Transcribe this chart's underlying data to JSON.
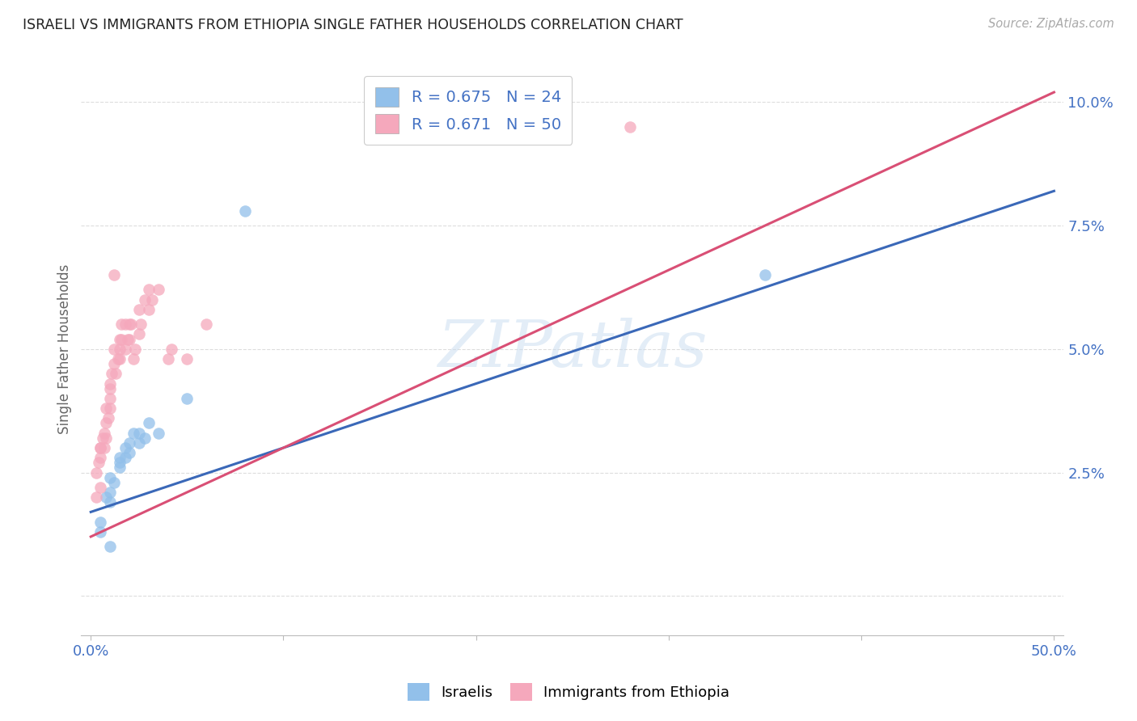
{
  "title": "ISRAELI VS IMMIGRANTS FROM ETHIOPIA SINGLE FATHER HOUSEHOLDS CORRELATION CHART",
  "source": "Source: ZipAtlas.com",
  "ylabel": "Single Father Households",
  "watermark": "ZIPatlas",
  "xlim": [
    -0.005,
    0.505
  ],
  "ylim": [
    -0.008,
    0.108
  ],
  "ytick_vals": [
    0.0,
    0.025,
    0.05,
    0.075,
    0.1
  ],
  "ytick_labels": [
    "",
    "2.5%",
    "5.0%",
    "7.5%",
    "10.0%"
  ],
  "xtick_vals": [
    0.0,
    0.1,
    0.2,
    0.3,
    0.4,
    0.5
  ],
  "xtick_labels": [
    "0.0%",
    "",
    "",
    "",
    "",
    "50.0%"
  ],
  "israeli_color": "#92C0EA",
  "ethiopia_color": "#F5A8BC",
  "israeli_line_color": "#3A68B8",
  "ethiopia_line_color": "#D94F75",
  "israeli_R": 0.675,
  "israeli_N": 24,
  "ethiopia_R": 0.671,
  "ethiopia_N": 50,
  "israeli_line_x": [
    0.0,
    0.5
  ],
  "israeli_line_y": [
    0.017,
    0.082
  ],
  "ethiopia_line_x": [
    0.0,
    0.5
  ],
  "ethiopia_line_y": [
    0.012,
    0.102
  ],
  "israeli_scatter_x": [
    0.005,
    0.005,
    0.008,
    0.01,
    0.01,
    0.01,
    0.012,
    0.015,
    0.015,
    0.015,
    0.018,
    0.018,
    0.02,
    0.02,
    0.022,
    0.025,
    0.025,
    0.028,
    0.03,
    0.035,
    0.05,
    0.08,
    0.35,
    0.01
  ],
  "israeli_scatter_y": [
    0.015,
    0.013,
    0.02,
    0.021,
    0.019,
    0.024,
    0.023,
    0.026,
    0.028,
    0.027,
    0.03,
    0.028,
    0.031,
    0.029,
    0.033,
    0.031,
    0.033,
    0.032,
    0.035,
    0.033,
    0.04,
    0.078,
    0.065,
    0.01
  ],
  "ethiopia_scatter_x": [
    0.003,
    0.004,
    0.005,
    0.005,
    0.005,
    0.006,
    0.007,
    0.007,
    0.008,
    0.008,
    0.008,
    0.009,
    0.01,
    0.01,
    0.01,
    0.01,
    0.011,
    0.012,
    0.012,
    0.013,
    0.014,
    0.015,
    0.015,
    0.015,
    0.016,
    0.016,
    0.018,
    0.018,
    0.019,
    0.02,
    0.02,
    0.021,
    0.022,
    0.023,
    0.025,
    0.025,
    0.026,
    0.028,
    0.03,
    0.03,
    0.032,
    0.035,
    0.04,
    0.042,
    0.05,
    0.06,
    0.28,
    0.012,
    0.005,
    0.003
  ],
  "ethiopia_scatter_y": [
    0.025,
    0.027,
    0.028,
    0.03,
    0.03,
    0.032,
    0.033,
    0.03,
    0.035,
    0.032,
    0.038,
    0.036,
    0.038,
    0.042,
    0.04,
    0.043,
    0.045,
    0.047,
    0.05,
    0.045,
    0.048,
    0.05,
    0.052,
    0.048,
    0.052,
    0.055,
    0.05,
    0.055,
    0.052,
    0.052,
    0.055,
    0.055,
    0.048,
    0.05,
    0.053,
    0.058,
    0.055,
    0.06,
    0.058,
    0.062,
    0.06,
    0.062,
    0.048,
    0.05,
    0.048,
    0.055,
    0.095,
    0.065,
    0.022,
    0.02
  ],
  "background_color": "#FFFFFF",
  "grid_color": "#DDDDDD",
  "title_color": "#222222",
  "axis_tick_color": "#4472C4",
  "ylabel_color": "#666666",
  "legend_text_color": "#4472C4",
  "source_color": "#AAAAAA"
}
